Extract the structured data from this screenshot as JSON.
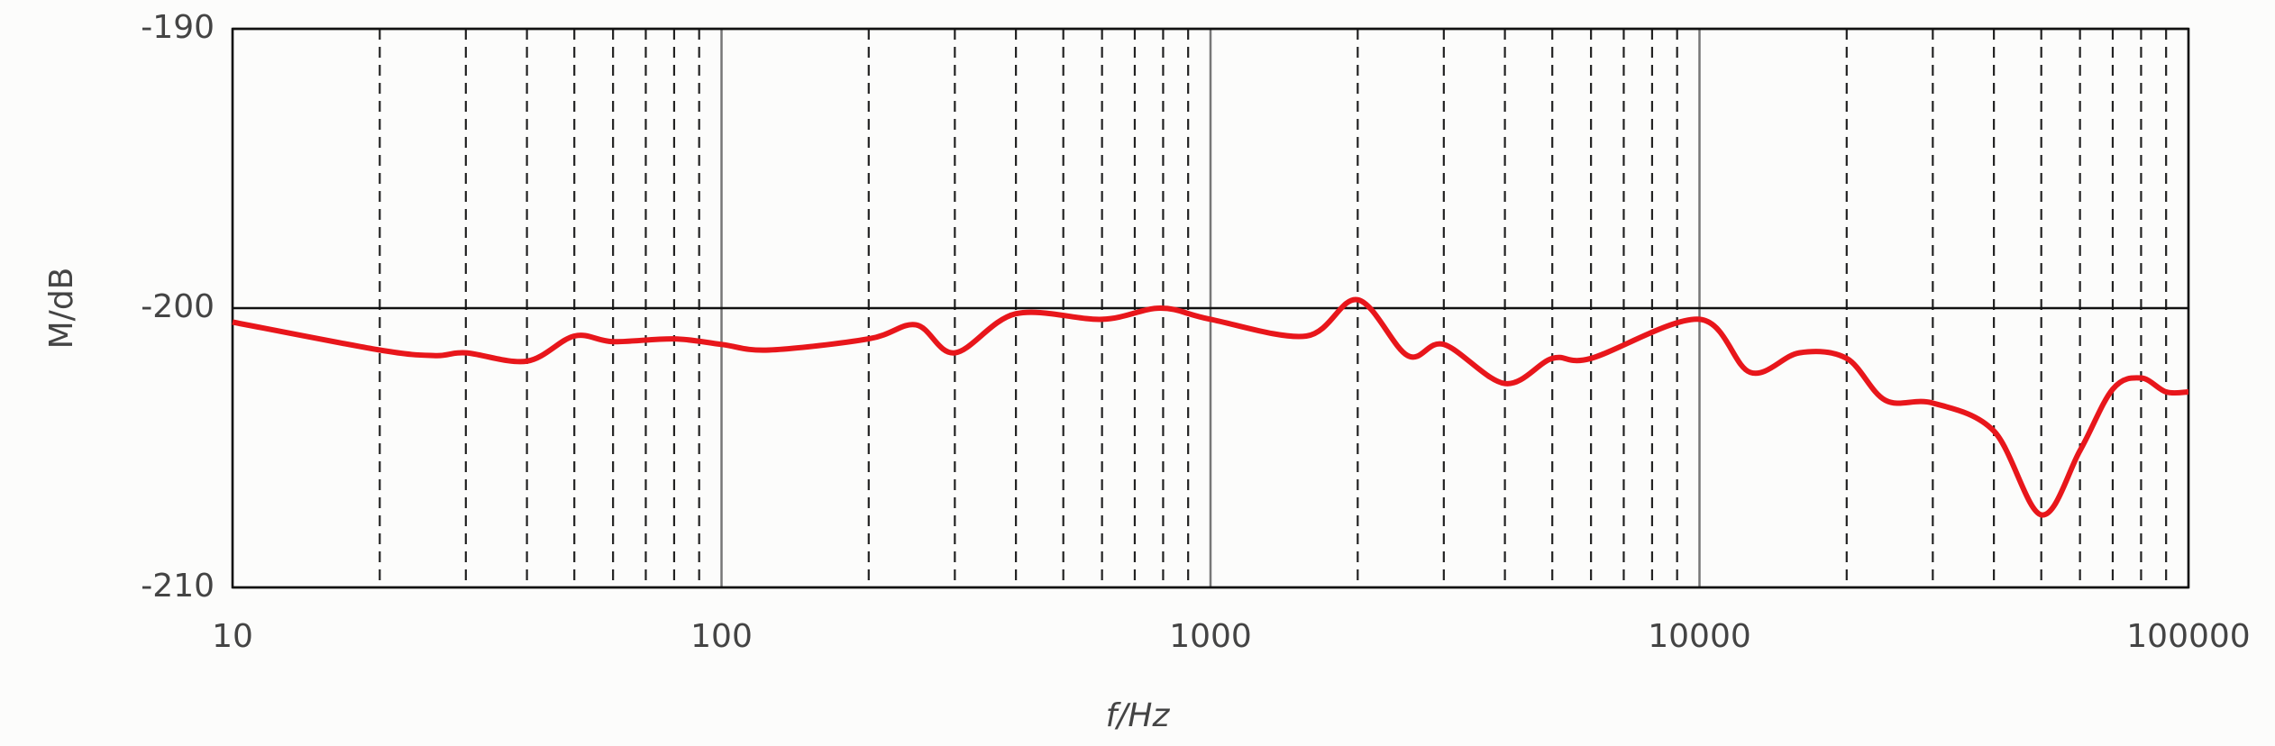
{
  "chart_data": {
    "type": "line",
    "xlabel": "f/Hz",
    "ylabel": "M/dB",
    "x": [
      10,
      20,
      26,
      30,
      40,
      50,
      60,
      80,
      100,
      125,
      200,
      250,
      300,
      400,
      600,
      790,
      1000,
      1570,
      2000,
      2530,
      3000,
      4000,
      5000,
      6000,
      10000,
      12700,
      16000,
      20000,
      24000,
      30000,
      40000,
      50000,
      60000,
      70000,
      80000,
      90000,
      100000
    ],
    "series": [
      {
        "name": "M",
        "color": "#e8161b",
        "values": [
          -200.5,
          -201.5,
          -201.7,
          -201.6,
          -201.9,
          -201.0,
          -201.2,
          -201.1,
          -201.3,
          -201.5,
          -201.1,
          -200.6,
          -201.6,
          -200.2,
          -200.4,
          -200.0,
          -200.4,
          -201.0,
          -199.7,
          -201.7,
          -201.3,
          -202.7,
          -201.8,
          -201.8,
          -200.4,
          -202.3,
          -201.6,
          -201.8,
          -203.3,
          -203.4,
          -204.4,
          -207.4,
          -205.1,
          -202.9,
          -202.5,
          -203.0,
          -203.0
        ]
      }
    ],
    "xscale": "log",
    "xlim": [
      10,
      100000
    ],
    "xticks": [
      10,
      100,
      1000,
      10000,
      100000
    ],
    "ylim": [
      -210,
      -190
    ],
    "yticks": [
      -210,
      -200,
      -190
    ],
    "grid": true,
    "minor_grid": true
  }
}
